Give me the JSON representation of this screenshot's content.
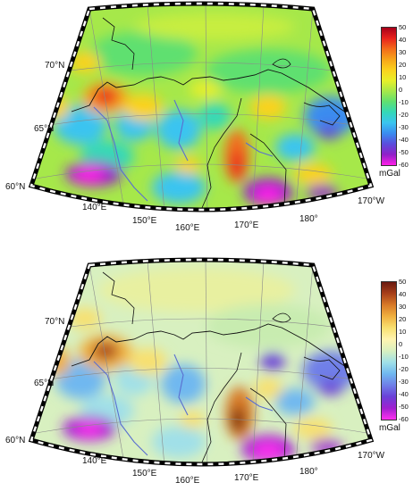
{
  "panels": [
    {
      "id": "top",
      "colorbar": {
        "unit": "mGal",
        "ticks": [
          "50",
          "40",
          "30",
          "20",
          "10",
          "0",
          "-10",
          "-20",
          "-30",
          "-40",
          "-50",
          "-60"
        ],
        "range": [
          -60,
          50
        ],
        "palette": [
          "#a8001a",
          "#e8221c",
          "#f36b1a",
          "#f7a41a",
          "#fbd21e",
          "#e8ef2a",
          "#a6e84a",
          "#5fe070",
          "#34d8b8",
          "#3ac4f0",
          "#3a8cf0",
          "#5b4cdc",
          "#9020c8",
          "#ff20e8"
        ]
      },
      "lat_labels": [
        "70°N",
        "65°N",
        "60°N"
      ],
      "lon_labels": [
        "140°E",
        "150°E",
        "160°E",
        "170°E",
        "180°",
        "170°W"
      ]
    },
    {
      "id": "bottom",
      "colorbar": {
        "unit": "mGal",
        "ticks": [
          "50",
          "40",
          "30",
          "20",
          "10",
          "0",
          "-10",
          "-20",
          "-30",
          "-40",
          "-50",
          "-60"
        ],
        "range": [
          -60,
          50
        ],
        "palette": [
          "#6a1a10",
          "#a8401a",
          "#d87a28",
          "#f0b040",
          "#f8e070",
          "#fff4b0",
          "#d8f0c0",
          "#a0e0e8",
          "#70b8f0",
          "#6f7fe8",
          "#6a40d8",
          "#a020d0",
          "#ff30f0"
        ]
      },
      "lat_labels": [
        "70°N",
        "65°N",
        "60°N"
      ],
      "lon_labels": [
        "140°E",
        "150°E",
        "160°E",
        "170°E",
        "180°",
        "170°W"
      ]
    }
  ]
}
